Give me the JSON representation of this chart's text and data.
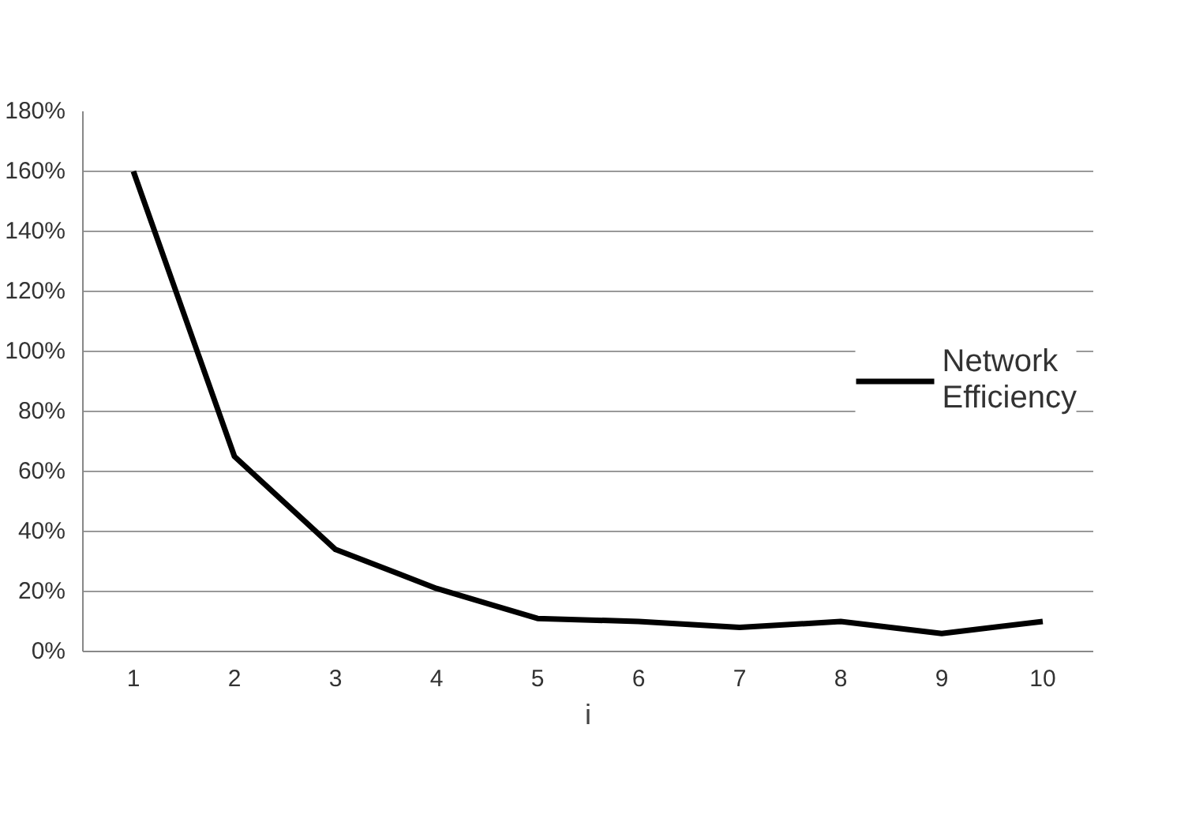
{
  "chart_data": {
    "type": "line",
    "xlabel": "i",
    "categories": [
      "1",
      "2",
      "3",
      "4",
      "5",
      "6",
      "7",
      "8",
      "9",
      "10"
    ],
    "series": [
      {
        "name": "Network Efficiency",
        "color": "#000000",
        "values": [
          160,
          65,
          34,
          21,
          11,
          10,
          8,
          10,
          6,
          10
        ]
      }
    ],
    "ylim": [
      0,
      180
    ],
    "yticks": [
      {
        "value": 0,
        "label": "0%"
      },
      {
        "value": 20,
        "label": "20%"
      },
      {
        "value": 40,
        "label": "40%"
      },
      {
        "value": 60,
        "label": "60%"
      },
      {
        "value": 80,
        "label": "80%"
      },
      {
        "value": 100,
        "label": "100%"
      },
      {
        "value": 120,
        "label": "120%"
      },
      {
        "value": 140,
        "label": "140%"
      },
      {
        "value": 160,
        "label": "160%"
      },
      {
        "value": 180,
        "label": "180%"
      }
    ],
    "grid": "y",
    "legend": "right",
    "marker": "none",
    "line_style": "solid"
  }
}
